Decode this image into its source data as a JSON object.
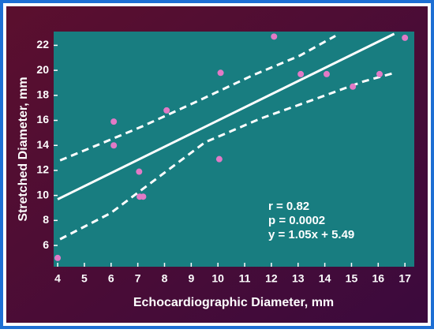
{
  "chart_data": {
    "type": "scatter",
    "xlabel": "Echocardiographic Diameter, mm",
    "ylabel": "Stretched Diameter, mm",
    "x": [
      4,
      6.1,
      6.1,
      7.05,
      7.07,
      7.2,
      8.08,
      10.1,
      10.05,
      12.1,
      13.1,
      14.07,
      15.05,
      16.05,
      17
    ],
    "y": [
      5,
      15.9,
      14,
      11.9,
      9.9,
      9.9,
      16.8,
      19.8,
      12.9,
      22.7,
      19.7,
      19.7,
      18.7,
      19.7,
      22.6
    ],
    "color": "#e27ac6",
    "lines": [
      {
        "style": "solid",
        "color": "#ffffff",
        "x": [
          4,
          16.6
        ],
        "y": [
          9.69,
          22.92
        ]
      },
      {
        "style": "dashed",
        "color": "#ffffff",
        "x": [
          4.09,
          5.39,
          7.16,
          9.23,
          11.3,
          13.07,
          14.4
        ],
        "y": [
          12.8,
          13.94,
          15.51,
          17.53,
          19.6,
          21.18,
          22.76
        ]
      },
      {
        "style": "dashed",
        "color": "#ffffff",
        "x": [
          4.09,
          5.98,
          7.75,
          9.52,
          11.59,
          13.66,
          15.43,
          16.61
        ],
        "y": [
          6.5,
          8.58,
          11.42,
          14.25,
          16.14,
          17.72,
          19.1,
          19.8
        ]
      }
    ],
    "annotations": [
      "r = 0.82",
      "p = 0.0002",
      "y = 1.05x + 5.49"
    ],
    "xlim": [
      3.85,
      17.35
    ],
    "ylim": [
      4.3,
      23.1
    ],
    "xticks": [
      4,
      5,
      6,
      7,
      8,
      9,
      10,
      11,
      12,
      13,
      14,
      15,
      16,
      17
    ],
    "yticks": [
      6,
      8,
      10,
      12,
      14,
      16,
      18,
      20,
      22
    ]
  }
}
